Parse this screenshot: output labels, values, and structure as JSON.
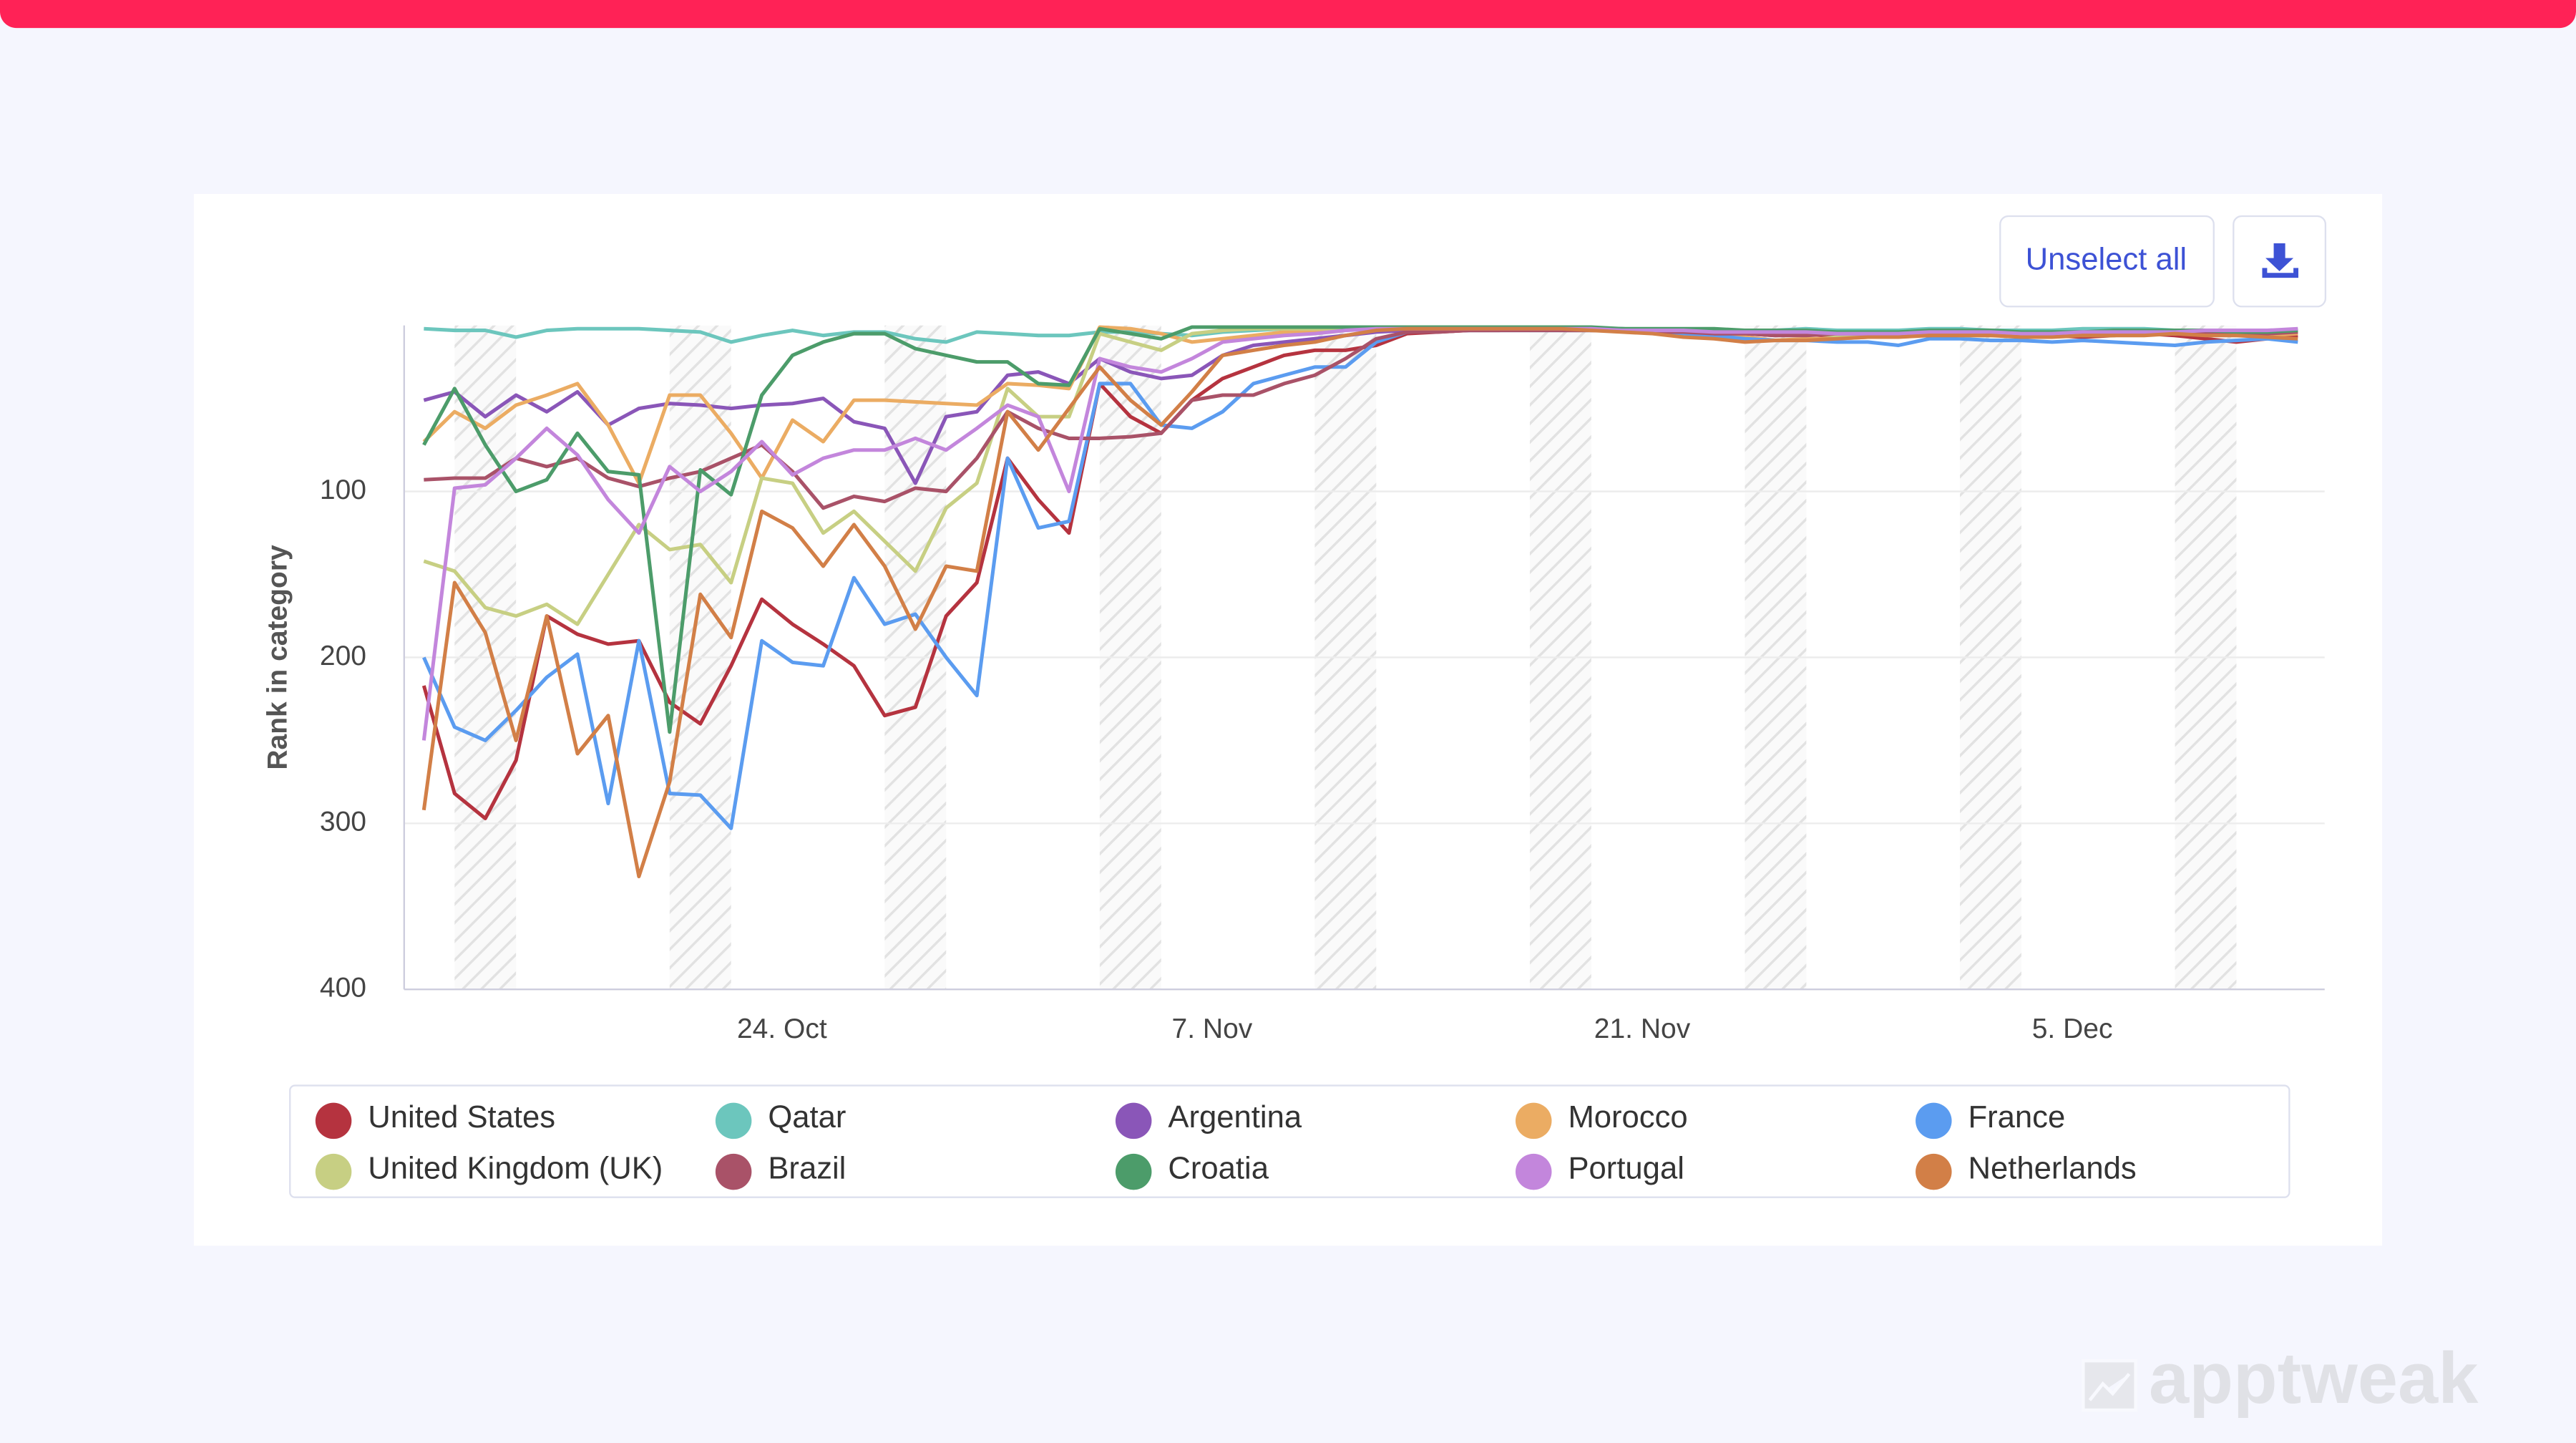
{
  "ui": {
    "button": "Unselect all",
    "watermark": "apptweak"
  },
  "chart_data": {
    "type": "line",
    "y_label": "Rank in category",
    "reversed": true,
    "grid": true,
    "x": [
      "14. Oct",
      "15. Oct",
      "16. Oct",
      "17. Oct",
      "18. Oct",
      "19. Oct",
      "20. Oct",
      "21. Oct",
      "22. Oct",
      "23. Oct",
      "24. Oct",
      "25. Oct",
      "26. Oct",
      "27. Oct",
      "28. Oct",
      "29. Oct",
      "30. Oct",
      "31. Oct",
      "1. Nov",
      "2. Nov",
      "3. Nov",
      "4. Nov",
      "5. Nov",
      "6. Nov",
      "7. Nov",
      "8. Nov",
      "9. Nov",
      "10. Nov",
      "11. Nov",
      "12. Nov",
      "13. Nov",
      "14. Nov",
      "15. Nov",
      "16. Nov",
      "17. Nov",
      "18. Nov",
      "19. Nov",
      "20. Nov",
      "21. Nov",
      "22. Nov",
      "23. Nov",
      "24. Nov",
      "25. Nov",
      "26. Nov",
      "27. Nov",
      "28. Nov",
      "29. Nov",
      "30. Nov",
      "1. Dec",
      "2. Dec",
      "3. Dec",
      "4. Dec",
      "5. Dec",
      "6. Dec",
      "7. Dec",
      "8. Dec",
      "9. Dec",
      "10. Dec",
      "11. Dec",
      "12. Dec",
      "13. Dec",
      "14. Dec"
    ],
    "xticks": [
      "24. Oct",
      "7. Nov",
      "21. Nov",
      "5. Dec"
    ],
    "ylim": [
      400,
      0
    ],
    "yticks": [
      100,
      200,
      300,
      400
    ],
    "series": [
      {
        "name": "United States",
        "color": "#b5333f",
        "values": [
          217,
          282,
          297,
          262,
          175,
          186,
          192,
          190,
          227,
          240,
          205,
          165,
          180,
          192,
          205,
          235,
          230,
          175,
          155,
          80,
          105,
          125,
          35,
          55,
          65,
          45,
          32,
          25,
          18,
          15,
          15,
          12,
          5,
          4,
          3,
          3,
          2,
          2,
          3,
          3,
          4,
          5,
          4,
          5,
          6,
          5,
          7,
          6,
          5,
          6,
          6,
          5,
          4,
          6,
          7,
          6,
          5,
          6,
          8,
          10,
          8,
          6
        ]
      },
      {
        "name": "Qatar",
        "color": "#6cc6bd",
        "values": [
          2,
          3,
          3,
          7,
          3,
          2,
          2,
          2,
          3,
          4,
          10,
          6,
          3,
          6,
          4,
          4,
          8,
          10,
          4,
          5,
          6,
          6,
          4,
          4,
          5,
          6,
          4,
          3,
          2,
          2,
          2,
          2,
          2,
          2,
          2,
          2,
          2,
          2,
          2,
          2,
          3,
          3,
          3,
          3,
          3,
          2,
          3,
          3,
          3,
          2,
          2,
          3,
          3,
          3,
          2,
          2,
          2,
          3,
          3,
          3,
          3,
          3
        ]
      },
      {
        "name": "Argentina",
        "color": "#8a56b8",
        "values": [
          45,
          40,
          55,
          42,
          52,
          40,
          60,
          50,
          47,
          48,
          50,
          48,
          47,
          44,
          58,
          62,
          95,
          55,
          52,
          30,
          28,
          35,
          20,
          28,
          32,
          30,
          18,
          12,
          10,
          8,
          6,
          4,
          3,
          3,
          3,
          2,
          2,
          2,
          2,
          2,
          3,
          4,
          4,
          5,
          4,
          4,
          5,
          5,
          5,
          4,
          4,
          5,
          5,
          4,
          4,
          5,
          5,
          4,
          4,
          4,
          3,
          4
        ]
      },
      {
        "name": "Morocco",
        "color": "#ebac63",
        "values": [
          70,
          52,
          62,
          48,
          42,
          35,
          60,
          95,
          42,
          42,
          65,
          92,
          57,
          70,
          45,
          45,
          46,
          47,
          48,
          35,
          36,
          38,
          1,
          2,
          5,
          10,
          8,
          6,
          4,
          3,
          2,
          2,
          2,
          2,
          2,
          2,
          2,
          3,
          3,
          3,
          4,
          5,
          6,
          7,
          9,
          8,
          8,
          7,
          6,
          6,
          5,
          5,
          6,
          6,
          5,
          5,
          4,
          5,
          5,
          6,
          6,
          5
        ]
      },
      {
        "name": "France",
        "color": "#5b9cf0",
        "values": [
          200,
          242,
          250,
          232,
          212,
          198,
          288,
          190,
          282,
          283,
          303,
          190,
          203,
          205,
          152,
          180,
          174,
          200,
          223,
          80,
          122,
          118,
          35,
          35,
          60,
          62,
          52,
          35,
          30,
          25,
          25,
          10,
          4,
          3,
          3,
          3,
          3,
          3,
          3,
          3,
          4,
          5,
          6,
          8,
          9,
          9,
          10,
          10,
          12,
          8,
          8,
          9,
          9,
          10,
          9,
          10,
          11,
          12,
          10,
          9,
          8,
          10
        ]
      },
      {
        "name": "United Kingdom (UK)",
        "color": "#c7cf83",
        "values": [
          142,
          148,
          170,
          175,
          168,
          180,
          150,
          120,
          135,
          132,
          155,
          92,
          95,
          125,
          112,
          130,
          148,
          110,
          95,
          38,
          55,
          55,
          5,
          10,
          15,
          5,
          3,
          2,
          2,
          2,
          2,
          2,
          2,
          2,
          2,
          2,
          2,
          2,
          2,
          3,
          3,
          4,
          4,
          5,
          5,
          5,
          6,
          6,
          5,
          5,
          6,
          6,
          5,
          5,
          6,
          6,
          5,
          5,
          4,
          4,
          3,
          3
        ]
      },
      {
        "name": "Brazil",
        "color": "#a95268",
        "values": [
          93,
          92,
          92,
          80,
          85,
          80,
          92,
          97,
          92,
          88,
          80,
          72,
          88,
          110,
          103,
          106,
          98,
          100,
          80,
          52,
          62,
          68,
          68,
          67,
          65,
          45,
          42,
          42,
          35,
          30,
          20,
          8,
          4,
          4,
          3,
          3,
          3,
          3,
          3,
          3,
          4,
          4,
          5,
          5,
          6,
          6,
          5,
          5,
          6,
          6,
          5,
          5,
          6,
          6,
          5,
          5,
          4,
          4,
          5,
          5,
          5,
          4
        ]
      },
      {
        "name": "Croatia",
        "color": "#4c9c6a",
        "values": [
          72,
          38,
          72,
          100,
          93,
          65,
          88,
          90,
          245,
          87,
          102,
          42,
          18,
          10,
          5,
          5,
          14,
          18,
          22,
          22,
          35,
          36,
          2,
          5,
          8,
          1,
          1,
          1,
          1,
          1,
          1,
          1,
          1,
          1,
          1,
          1,
          1,
          1,
          1,
          2,
          2,
          2,
          2,
          3,
          3,
          3,
          4,
          4,
          4,
          3,
          3,
          3,
          4,
          4,
          4,
          3,
          3,
          3,
          3,
          4,
          4,
          3
        ]
      },
      {
        "name": "Portugal",
        "color": "#c386dc",
        "values": [
          250,
          98,
          96,
          80,
          62,
          78,
          105,
          125,
          85,
          100,
          88,
          70,
          90,
          80,
          75,
          75,
          68,
          75,
          62,
          48,
          55,
          100,
          20,
          25,
          28,
          20,
          10,
          8,
          6,
          5,
          3,
          2,
          2,
          2,
          2,
          2,
          2,
          2,
          2,
          3,
          3,
          3,
          4,
          4,
          4,
          4,
          5,
          5,
          5,
          4,
          4,
          4,
          5,
          5,
          4,
          4,
          4,
          4,
          3,
          3,
          3,
          2
        ]
      },
      {
        "name": "Netherlands",
        "color": "#d27f47",
        "values": [
          292,
          155,
          185,
          250,
          175,
          258,
          235,
          332,
          275,
          162,
          188,
          112,
          122,
          145,
          120,
          145,
          183,
          145,
          148,
          52,
          75,
          50,
          25,
          45,
          60,
          40,
          18,
          15,
          12,
          10,
          6,
          3,
          2,
          2,
          2,
          2,
          2,
          2,
          3,
          4,
          5,
          7,
          8,
          10,
          9,
          9,
          8,
          7,
          7,
          6,
          6,
          6,
          7,
          7,
          6,
          6,
          6,
          5,
          6,
          6,
          7,
          8
        ]
      }
    ]
  }
}
